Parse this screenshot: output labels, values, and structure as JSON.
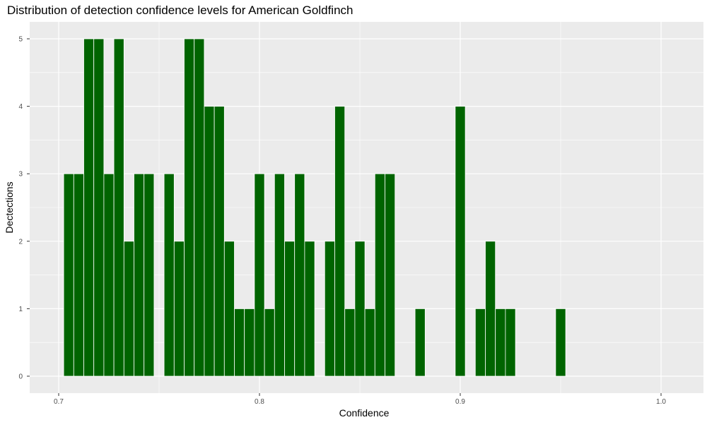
{
  "colors": {
    "panel": "#ebebeb",
    "grid": "#ffffff",
    "bar_fill": "#006400",
    "bar_outline": "#ffffff",
    "tick_text": "#4d4d4d",
    "tick_mark": "#333333"
  },
  "chart_data": {
    "type": "bar",
    "title": "Distribution of detection confidence levels for American Goldfinch",
    "xlabel": "Confidence",
    "ylabel": "Dectections",
    "xlim": [
      0.7,
      1.0
    ],
    "ylim": [
      0,
      5
    ],
    "x_ticks": [
      0.7,
      0.8,
      0.9,
      1.0
    ],
    "x_tick_labels": [
      "0.7",
      "0.8",
      "0.9",
      "1.0"
    ],
    "y_ticks": [
      0,
      1,
      2,
      3,
      4,
      5
    ],
    "y_tick_labels": [
      "0",
      "1",
      "2",
      "3",
      "4",
      "5"
    ],
    "grid": true,
    "legend": "none",
    "bar_width": 0.005,
    "bars": [
      {
        "x": 0.705,
        "y": 3
      },
      {
        "x": 0.71,
        "y": 3
      },
      {
        "x": 0.715,
        "y": 5
      },
      {
        "x": 0.72,
        "y": 5
      },
      {
        "x": 0.725,
        "y": 3
      },
      {
        "x": 0.73,
        "y": 5
      },
      {
        "x": 0.735,
        "y": 2
      },
      {
        "x": 0.74,
        "y": 3
      },
      {
        "x": 0.745,
        "y": 3
      },
      {
        "x": 0.755,
        "y": 3
      },
      {
        "x": 0.76,
        "y": 2
      },
      {
        "x": 0.765,
        "y": 5
      },
      {
        "x": 0.77,
        "y": 5
      },
      {
        "x": 0.775,
        "y": 4
      },
      {
        "x": 0.78,
        "y": 4
      },
      {
        "x": 0.785,
        "y": 2
      },
      {
        "x": 0.79,
        "y": 1
      },
      {
        "x": 0.795,
        "y": 1
      },
      {
        "x": 0.8,
        "y": 3
      },
      {
        "x": 0.805,
        "y": 1
      },
      {
        "x": 0.81,
        "y": 3
      },
      {
        "x": 0.815,
        "y": 2
      },
      {
        "x": 0.82,
        "y": 3
      },
      {
        "x": 0.825,
        "y": 2
      },
      {
        "x": 0.835,
        "y": 2
      },
      {
        "x": 0.84,
        "y": 4
      },
      {
        "x": 0.845,
        "y": 1
      },
      {
        "x": 0.85,
        "y": 2
      },
      {
        "x": 0.855,
        "y": 1
      },
      {
        "x": 0.86,
        "y": 3
      },
      {
        "x": 0.865,
        "y": 3
      },
      {
        "x": 0.88,
        "y": 1
      },
      {
        "x": 0.9,
        "y": 4
      },
      {
        "x": 0.91,
        "y": 1
      },
      {
        "x": 0.915,
        "y": 2
      },
      {
        "x": 0.92,
        "y": 1
      },
      {
        "x": 0.925,
        "y": 1
      },
      {
        "x": 0.95,
        "y": 1
      }
    ]
  }
}
